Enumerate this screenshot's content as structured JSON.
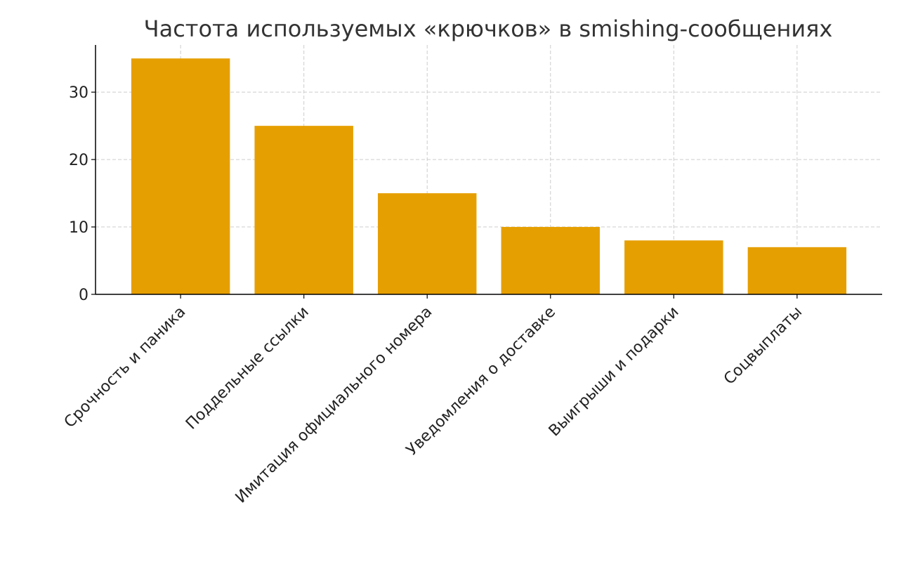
{
  "chart_data": {
    "type": "bar",
    "title": "Частота используемых «крючков» в smishing-сообщениях",
    "categories": [
      "Срочность и паника",
      "Поддельные ссылки",
      "Имитация официального номера",
      "Уведомления о доставке",
      "Выигрыши и подарки",
      "Соцвыплаты"
    ],
    "values": [
      35,
      25,
      15,
      10,
      8,
      7
    ],
    "color": "#e69f00",
    "ylim": [
      0,
      37
    ],
    "yticks": [
      0,
      10,
      20,
      30
    ],
    "grid": true
  }
}
